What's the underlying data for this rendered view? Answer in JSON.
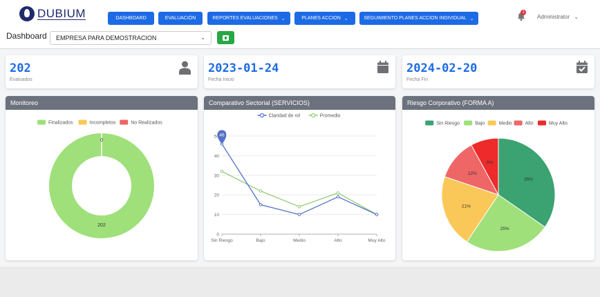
{
  "brand": {
    "name": "DUBIUM"
  },
  "nav": [
    {
      "label": "DASHBOARD",
      "caret": false
    },
    {
      "label": "EVALUACIÓN",
      "caret": false
    },
    {
      "label": "REPORTES EVALUACIONES",
      "caret": true
    },
    {
      "label": "PLANES ACCION",
      "caret": true
    },
    {
      "label": "SEGUIMIENTO PLANES ACCION INDIVIDUAL",
      "caret": true
    }
  ],
  "notifications": {
    "count": "1"
  },
  "user": {
    "name": "Administrator"
  },
  "page": {
    "title": "Dashboard"
  },
  "company_select": {
    "value": "EMPRESA PARA DEMOSTRACION"
  },
  "stats": [
    {
      "value": "202",
      "label": "Evaluados",
      "icon": "user-icon"
    },
    {
      "value": "2023-01-24",
      "label": "Fecha Inicio",
      "icon": "calendar-icon"
    },
    {
      "value": "2024-02-20",
      "label": "Fecha Fin",
      "icon": "calendar-check-icon"
    }
  ],
  "colors": {
    "primary": "#1d6ae5",
    "panel_header": "#6c727d",
    "excel": "#28a745"
  },
  "chart_data": [
    {
      "type": "donut",
      "title": "Monitoreo",
      "legend": "top",
      "series": [
        {
          "name": "Finalizados",
          "value": 202,
          "color": "#9fe07a"
        },
        {
          "name": "Incompletos",
          "value": 0,
          "color": "#fac858"
        },
        {
          "name": "No Realizados",
          "value": 0,
          "color": "#ee6666"
        }
      ],
      "labels": [
        "0",
        "202"
      ]
    },
    {
      "type": "line",
      "title": "Comparativo Sectorial (SERVICIOS)",
      "legend": "top",
      "categories": [
        "Sin Riesgo",
        "Bajo",
        "Medio",
        "Alto",
        "Muy Alto"
      ],
      "series": [
        {
          "name": "Claridad de rol",
          "values": [
            46,
            15,
            10,
            19,
            10
          ],
          "color": "#5470c6"
        },
        {
          "name": "Promedio",
          "values": [
            32,
            22,
            14,
            21,
            10
          ],
          "color": "#91cc75"
        }
      ],
      "yticks": [
        "0",
        "10",
        "20",
        "30",
        "40",
        "50"
      ],
      "ylim": [
        0,
        50
      ],
      "marker_label": "46",
      "grid": true
    },
    {
      "type": "pie",
      "title": "Riesgo Corporativo (FORMA A)",
      "legend": "top",
      "series": [
        {
          "name": "Sin Riesgo",
          "value": 35,
          "label": "35%",
          "color": "#3ba272"
        },
        {
          "name": "Bajo",
          "value": 25,
          "label": "25%",
          "color": "#9fe07a"
        },
        {
          "name": "Medio",
          "value": 21,
          "label": "21%",
          "color": "#fac858"
        },
        {
          "name": "Alto",
          "value": 12,
          "label": "12%",
          "color": "#ee6666"
        },
        {
          "name": "Muy Alto",
          "value": 8,
          "label": "8%",
          "color": "#ee2a2a"
        }
      ]
    }
  ]
}
